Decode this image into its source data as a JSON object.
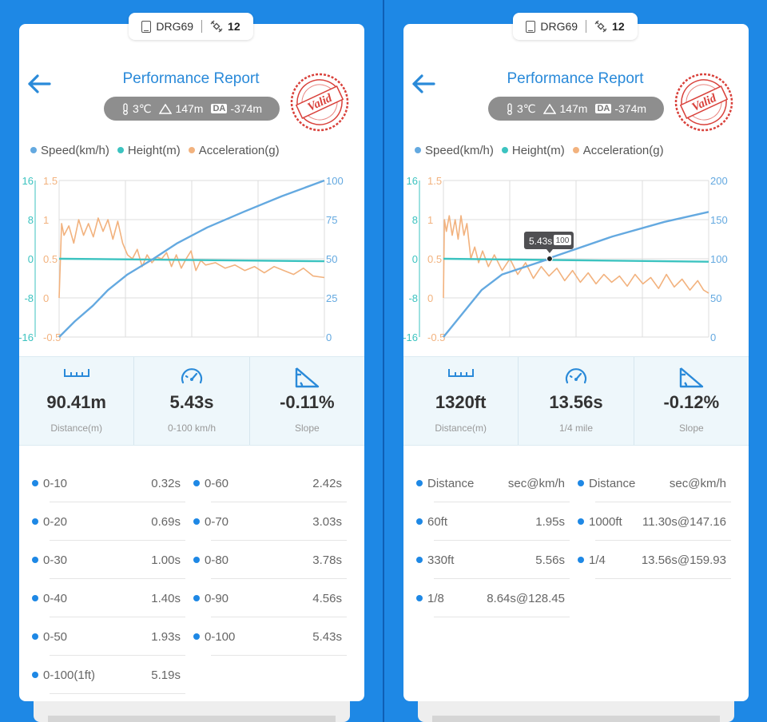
{
  "panels": [
    {
      "device": {
        "name": "DRG69",
        "satellites": "12"
      },
      "title": "Performance Report",
      "env": {
        "temp": "3℃",
        "altitude": "147m",
        "da_label": "DA",
        "da_value": "-374m"
      },
      "stamp": "Valid",
      "legend": [
        {
          "label": "Speed(km/h)",
          "color": "#64a9e0"
        },
        {
          "label": "Height(m)",
          "color": "#3cc3c0"
        },
        {
          "label": "Acceleration(g)",
          "color": "#f2b27e"
        }
      ],
      "chart_data": {
        "type": "line",
        "x_range": [
          0,
          5.43
        ],
        "height_axis": {
          "ticks": [
            "16",
            "8",
            "0",
            "-8",
            "-16"
          ],
          "range": [
            -16,
            16
          ],
          "color": "#3cc3c0"
        },
        "accel_axis": {
          "ticks": [
            "1.5",
            "1",
            "0.5",
            "0",
            "-0.5"
          ],
          "range": [
            -0.5,
            1.5
          ],
          "color": "#f2b27e"
        },
        "speed_axis": {
          "ticks": [
            "100",
            "75",
            "50",
            "25",
            "0"
          ],
          "range": [
            0,
            100
          ],
          "color": "#64a9e0"
        },
        "series": [
          {
            "name": "Speed(km/h)",
            "axis": "speed",
            "x": [
              0,
              0.32,
              0.69,
              1.0,
              1.4,
              1.93,
              2.42,
              3.03,
              3.78,
              4.56,
              5.43
            ],
            "y": [
              0,
              10,
              20,
              30,
              40,
              50,
              60,
              70,
              80,
              90,
              100
            ]
          },
          {
            "name": "Height(m)",
            "axis": "height",
            "x": [
              0,
              0.05,
              5.43
            ],
            "y": [
              0,
              0,
              -0.5
            ]
          },
          {
            "name": "Acceleration(g)",
            "axis": "accel",
            "x": [
              0,
              0.05,
              0.1,
              0.2,
              0.3,
              0.4,
              0.5,
              0.6,
              0.7,
              0.8,
              0.9,
              1.0,
              1.1,
              1.2,
              1.3,
              1.4,
              1.5,
              1.6,
              1.7,
              1.8,
              1.9,
              2.0,
              2.1,
              2.2,
              2.3,
              2.4,
              2.5,
              2.6,
              2.7,
              2.8,
              2.9,
              3.0,
              3.2,
              3.4,
              3.6,
              3.8,
              4.0,
              4.2,
              4.4,
              4.6,
              4.8,
              5.0,
              5.2,
              5.43
            ],
            "y": [
              0,
              0.95,
              0.8,
              0.92,
              0.7,
              1.0,
              0.8,
              0.95,
              0.78,
              1.02,
              0.85,
              1.0,
              0.75,
              0.98,
              0.7,
              0.55,
              0.5,
              0.62,
              0.4,
              0.55,
              0.45,
              0.52,
              0.5,
              0.58,
              0.4,
              0.55,
              0.38,
              0.5,
              0.6,
              0.35,
              0.48,
              0.42,
              0.45,
              0.38,
              0.42,
              0.35,
              0.4,
              0.32,
              0.4,
              0.35,
              0.3,
              0.38,
              0.28,
              0.26
            ]
          }
        ]
      },
      "stats": [
        {
          "icon": "ruler-icon",
          "value": "90.41m",
          "label": "Distance(m)"
        },
        {
          "icon": "speedometer-icon",
          "value": "5.43s",
          "label": "0-100 km/h"
        },
        {
          "icon": "slope-icon",
          "value": "-0.11%",
          "label": "Slope"
        }
      ],
      "results": [
        {
          "k": "0-10",
          "v": "0.32s"
        },
        {
          "k": "0-60",
          "v": "2.42s"
        },
        {
          "k": "0-20",
          "v": "0.69s"
        },
        {
          "k": "0-70",
          "v": "3.03s"
        },
        {
          "k": "0-30",
          "v": "1.00s"
        },
        {
          "k": "0-80",
          "v": "3.78s"
        },
        {
          "k": "0-40",
          "v": "1.40s"
        },
        {
          "k": "0-90",
          "v": "4.56s"
        },
        {
          "k": "0-50",
          "v": "1.93s"
        },
        {
          "k": "0-100",
          "v": "5.43s"
        },
        {
          "k": "0-100(1ft)",
          "v": "5.19s"
        }
      ]
    },
    {
      "device": {
        "name": "DRG69",
        "satellites": "12"
      },
      "title": "Performance Report",
      "env": {
        "temp": "3℃",
        "altitude": "147m",
        "da_label": "DA",
        "da_value": "-374m"
      },
      "stamp": "Valid",
      "legend": [
        {
          "label": "Speed(km/h)",
          "color": "#64a9e0"
        },
        {
          "label": "Height(m)",
          "color": "#3cc3c0"
        },
        {
          "label": "Acceleration(g)",
          "color": "#f2b27e"
        }
      ],
      "tooltip": {
        "time": "5.43s",
        "speed": "100"
      },
      "chart_data": {
        "type": "line",
        "x_range": [
          0,
          13.56
        ],
        "height_axis": {
          "ticks": [
            "16",
            "8",
            "0",
            "-8",
            "-16"
          ],
          "range": [
            -16,
            16
          ],
          "color": "#3cc3c0"
        },
        "accel_axis": {
          "ticks": [
            "1.5",
            "1",
            "0.5",
            "0",
            "-0.5"
          ],
          "range": [
            -0.5,
            1.5
          ],
          "color": "#f2b27e"
        },
        "speed_axis": {
          "ticks": [
            "200",
            "150",
            "100",
            "50",
            "0"
          ],
          "range": [
            0,
            200
          ],
          "color": "#64a9e0"
        },
        "tooltip_point": {
          "x": 5.43,
          "y": 100
        },
        "series": [
          {
            "name": "Speed(km/h)",
            "axis": "speed",
            "x": [
              0,
              1.95,
              3.0,
              5.43,
              5.56,
              8.64,
              11.3,
              13.56
            ],
            "y": [
              0,
              60,
              80,
              100,
              102,
              128.45,
              147.16,
              159.93
            ]
          },
          {
            "name": "Height(m)",
            "axis": "height",
            "x": [
              0,
              0.05,
              13.56
            ],
            "y": [
              0,
              0,
              -0.6
            ]
          },
          {
            "name": "Acceleration(g)",
            "axis": "accel",
            "x": [
              0,
              0.05,
              0.15,
              0.3,
              0.45,
              0.6,
              0.75,
              0.9,
              1.05,
              1.2,
              1.4,
              1.6,
              1.8,
              2.0,
              2.3,
              2.6,
              3.0,
              3.4,
              3.8,
              4.2,
              4.6,
              5.0,
              5.4,
              5.8,
              6.2,
              6.6,
              7.0,
              7.4,
              7.8,
              8.2,
              8.6,
              9.0,
              9.4,
              9.8,
              10.2,
              10.6,
              11.0,
              11.4,
              11.8,
              12.2,
              12.6,
              13.0,
              13.3,
              13.56
            ],
            "y": [
              0,
              1.0,
              0.85,
              1.05,
              0.8,
              1.0,
              0.75,
              1.05,
              0.8,
              0.95,
              0.5,
              0.65,
              0.45,
              0.6,
              0.4,
              0.55,
              0.35,
              0.5,
              0.3,
              0.45,
              0.25,
              0.4,
              0.28,
              0.38,
              0.22,
              0.35,
              0.2,
              0.32,
              0.18,
              0.3,
              0.2,
              0.28,
              0.15,
              0.3,
              0.18,
              0.26,
              0.12,
              0.3,
              0.14,
              0.24,
              0.1,
              0.22,
              0.1,
              0.06
            ]
          }
        ]
      },
      "stats": [
        {
          "icon": "ruler-icon",
          "value": "1320ft",
          "label": "Distance(m)"
        },
        {
          "icon": "speedometer-icon",
          "value": "13.56s",
          "label": "1/4 mile"
        },
        {
          "icon": "slope-icon",
          "value": "-0.12%",
          "label": "Slope"
        }
      ],
      "results": [
        {
          "k": "Distance",
          "v": "sec@km/h"
        },
        {
          "k": "Distance",
          "v": "sec@km/h"
        },
        {
          "k": "60ft",
          "v": "1.95s"
        },
        {
          "k": "1000ft",
          "v": "11.30s@147.16"
        },
        {
          "k": "330ft",
          "v": "5.56s"
        },
        {
          "k": "1/4",
          "v": "13.56s@159.93"
        },
        {
          "k": "1/8",
          "v": "8.64s@128.45"
        }
      ]
    }
  ]
}
